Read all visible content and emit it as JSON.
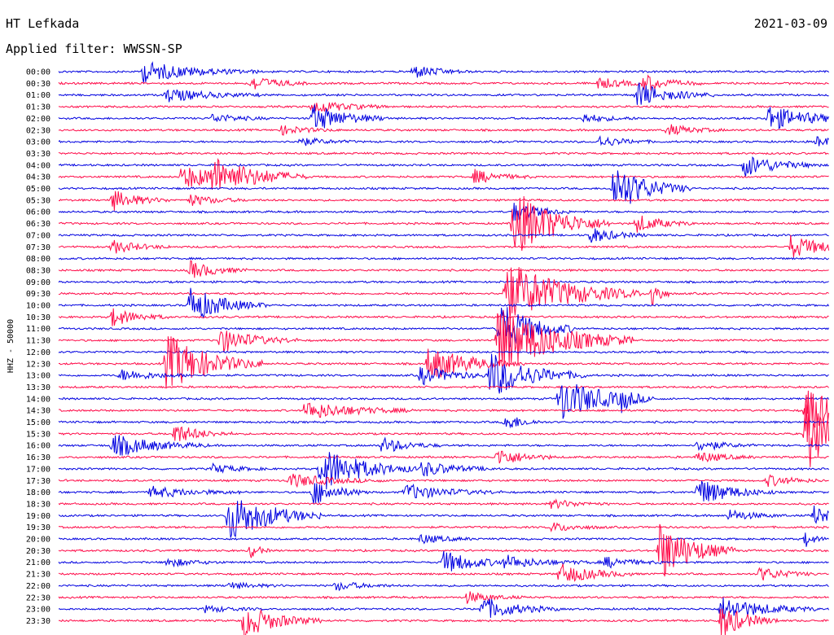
{
  "header": {
    "station": "HT Lefkada",
    "date": "2021-03-09",
    "filter": "Applied filter: WWSSN-SP"
  },
  "chart_data": {
    "type": "line",
    "title": "HT Lefkada",
    "subtitle": "Applied filter: WWSSN-SP",
    "ylabel": "HHZ - 50000",
    "row_labels": [
      "00:00",
      "00:30",
      "01:00",
      "01:30",
      "02:00",
      "02:30",
      "03:00",
      "03:30",
      "04:00",
      "04:30",
      "05:00",
      "05:30",
      "06:00",
      "06:30",
      "07:00",
      "07:30",
      "08:00",
      "08:30",
      "09:00",
      "09:30",
      "10:00",
      "10:30",
      "11:00",
      "11:30",
      "12:00",
      "12:30",
      "13:00",
      "13:30",
      "14:00",
      "14:30",
      "15:00",
      "15:30",
      "16:00",
      "16:30",
      "17:00",
      "17:30",
      "18:00",
      "18:30",
      "19:00",
      "19:30",
      "20:00",
      "20:30",
      "21:00",
      "21:30",
      "22:00",
      "22:30",
      "23:00",
      "23:30"
    ],
    "row_colors": [
      "#0000e0",
      "#ff0a48"
    ],
    "grid": false,
    "events": [
      {
        "row": 0,
        "x": 0.11,
        "amp": 0.9,
        "dur": 0.06
      },
      {
        "row": 0,
        "x": 0.46,
        "amp": 0.6,
        "dur": 0.03
      },
      {
        "row": 1,
        "x": 0.25,
        "amp": 0.7,
        "dur": 0.03
      },
      {
        "row": 1,
        "x": 0.7,
        "amp": 0.5,
        "dur": 0.03
      },
      {
        "row": 1,
        "x": 0.76,
        "amp": 0.7,
        "dur": 0.03
      },
      {
        "row": 2,
        "x": 0.14,
        "amp": 0.6,
        "dur": 0.05
      },
      {
        "row": 2,
        "x": 0.75,
        "amp": 1.1,
        "dur": 0.04
      },
      {
        "row": 3,
        "x": 0.33,
        "amp": 0.6,
        "dur": 0.04
      },
      {
        "row": 4,
        "x": 0.33,
        "amp": 1.2,
        "dur": 0.04
      },
      {
        "row": 4,
        "x": 0.2,
        "amp": 0.4,
        "dur": 0.03
      },
      {
        "row": 4,
        "x": 0.68,
        "amp": 0.4,
        "dur": 0.03
      },
      {
        "row": 4,
        "x": 0.92,
        "amp": 1.1,
        "dur": 0.05
      },
      {
        "row": 5,
        "x": 0.29,
        "amp": 0.4,
        "dur": 0.03
      },
      {
        "row": 5,
        "x": 0.79,
        "amp": 0.5,
        "dur": 0.03
      },
      {
        "row": 6,
        "x": 0.31,
        "amp": 0.4,
        "dur": 0.03
      },
      {
        "row": 6,
        "x": 0.7,
        "amp": 0.5,
        "dur": 0.03
      },
      {
        "row": 6,
        "x": 0.985,
        "amp": 0.5,
        "dur": 0.02
      },
      {
        "row": 8,
        "x": 0.89,
        "amp": 1.0,
        "dur": 0.04
      },
      {
        "row": 9,
        "x": 0.16,
        "amp": 1.0,
        "dur": 0.06
      },
      {
        "row": 9,
        "x": 0.2,
        "amp": 1.3,
        "dur": 0.05
      },
      {
        "row": 9,
        "x": 0.54,
        "amp": 0.6,
        "dur": 0.03
      },
      {
        "row": 10,
        "x": 0.72,
        "amp": 2.2,
        "dur": 0.04
      },
      {
        "row": 11,
        "x": 0.07,
        "amp": 0.9,
        "dur": 0.03
      },
      {
        "row": 11,
        "x": 0.17,
        "amp": 0.5,
        "dur": 0.03
      },
      {
        "row": 12,
        "x": 0.59,
        "amp": 0.9,
        "dur": 0.03
      },
      {
        "row": 13,
        "x": 0.59,
        "amp": 3.0,
        "dur": 0.05
      },
      {
        "row": 13,
        "x": 0.75,
        "amp": 0.8,
        "dur": 0.03
      },
      {
        "row": 14,
        "x": 0.69,
        "amp": 0.7,
        "dur": 0.03
      },
      {
        "row": 15,
        "x": 0.07,
        "amp": 0.6,
        "dur": 0.03
      },
      {
        "row": 15,
        "x": 0.95,
        "amp": 1.0,
        "dur": 0.04
      },
      {
        "row": 17,
        "x": 0.17,
        "amp": 0.8,
        "dur": 0.03
      },
      {
        "row": 19,
        "x": 0.58,
        "amp": 2.8,
        "dur": 0.07
      },
      {
        "row": 19,
        "x": 0.77,
        "amp": 1.5,
        "dur": 0.01
      },
      {
        "row": 20,
        "x": 0.17,
        "amp": 1.6,
        "dur": 0.04
      },
      {
        "row": 21,
        "x": 0.07,
        "amp": 0.8,
        "dur": 0.03
      },
      {
        "row": 22,
        "x": 0.57,
        "amp": 2.5,
        "dur": 0.04
      },
      {
        "row": 23,
        "x": 0.21,
        "amp": 1.1,
        "dur": 0.04
      },
      {
        "row": 23,
        "x": 0.57,
        "amp": 3.0,
        "dur": 0.07
      },
      {
        "row": 25,
        "x": 0.14,
        "amp": 2.6,
        "dur": 0.05
      },
      {
        "row": 25,
        "x": 0.48,
        "amp": 1.5,
        "dur": 0.05
      },
      {
        "row": 26,
        "x": 0.08,
        "amp": 0.5,
        "dur": 0.04
      },
      {
        "row": 26,
        "x": 0.47,
        "amp": 0.8,
        "dur": 0.04
      },
      {
        "row": 26,
        "x": 0.56,
        "amp": 2.0,
        "dur": 0.05
      },
      {
        "row": 28,
        "x": 0.65,
        "amp": 2.0,
        "dur": 0.05
      },
      {
        "row": 28,
        "x": 0.73,
        "amp": 0.9,
        "dur": 0.01
      },
      {
        "row": 29,
        "x": 0.32,
        "amp": 0.8,
        "dur": 0.06
      },
      {
        "row": 29,
        "x": 0.97,
        "amp": 2.5,
        "dur": 0.03
      },
      {
        "row": 30,
        "x": 0.58,
        "amp": 0.8,
        "dur": 0.02
      },
      {
        "row": 31,
        "x": 0.15,
        "amp": 0.9,
        "dur": 0.03
      },
      {
        "row": 31,
        "x": 0.97,
        "amp": 3.5,
        "dur": 0.03
      },
      {
        "row": 32,
        "x": 0.07,
        "amp": 1.0,
        "dur": 0.05
      },
      {
        "row": 32,
        "x": 0.42,
        "amp": 0.7,
        "dur": 0.03
      },
      {
        "row": 32,
        "x": 0.83,
        "amp": 0.5,
        "dur": 0.03
      },
      {
        "row": 33,
        "x": 0.57,
        "amp": 0.8,
        "dur": 0.03
      },
      {
        "row": 33,
        "x": 0.83,
        "amp": 0.5,
        "dur": 0.03
      },
      {
        "row": 34,
        "x": 0.34,
        "amp": 2.0,
        "dur": 0.05
      },
      {
        "row": 34,
        "x": 0.47,
        "amp": 0.7,
        "dur": 0.04
      },
      {
        "row": 34,
        "x": 0.2,
        "amp": 0.4,
        "dur": 0.03
      },
      {
        "row": 35,
        "x": 0.3,
        "amp": 0.6,
        "dur": 0.05
      },
      {
        "row": 35,
        "x": 0.92,
        "amp": 0.5,
        "dur": 0.03
      },
      {
        "row": 36,
        "x": 0.12,
        "amp": 0.5,
        "dur": 0.05
      },
      {
        "row": 36,
        "x": 0.33,
        "amp": 1.1,
        "dur": 0.03
      },
      {
        "row": 36,
        "x": 0.45,
        "amp": 0.7,
        "dur": 0.05
      },
      {
        "row": 36,
        "x": 0.83,
        "amp": 1.2,
        "dur": 0.04
      },
      {
        "row": 37,
        "x": 0.64,
        "amp": 0.4,
        "dur": 0.03
      },
      {
        "row": 38,
        "x": 0.22,
        "amp": 2.2,
        "dur": 0.05
      },
      {
        "row": 38,
        "x": 0.87,
        "amp": 0.5,
        "dur": 0.03
      },
      {
        "row": 38,
        "x": 0.98,
        "amp": 0.9,
        "dur": 0.02
      },
      {
        "row": 39,
        "x": 0.64,
        "amp": 0.4,
        "dur": 0.03
      },
      {
        "row": 40,
        "x": 0.47,
        "amp": 0.4,
        "dur": 0.03
      },
      {
        "row": 40,
        "x": 0.97,
        "amp": 0.7,
        "dur": 0.01
      },
      {
        "row": 41,
        "x": 0.78,
        "amp": 2.6,
        "dur": 0.04
      },
      {
        "row": 41,
        "x": 0.25,
        "amp": 0.7,
        "dur": 0.01
      },
      {
        "row": 42,
        "x": 0.14,
        "amp": 0.4,
        "dur": 0.03
      },
      {
        "row": 42,
        "x": 0.5,
        "amp": 1.0,
        "dur": 0.04
      },
      {
        "row": 42,
        "x": 0.58,
        "amp": 0.5,
        "dur": 0.05
      },
      {
        "row": 42,
        "x": 0.71,
        "amp": 0.5,
        "dur": 0.03
      },
      {
        "row": 43,
        "x": 0.65,
        "amp": 0.9,
        "dur": 0.04
      },
      {
        "row": 43,
        "x": 0.91,
        "amp": 0.6,
        "dur": 0.03
      },
      {
        "row": 44,
        "x": 0.36,
        "amp": 0.4,
        "dur": 0.03
      },
      {
        "row": 44,
        "x": 0.22,
        "amp": 0.3,
        "dur": 0.03
      },
      {
        "row": 45,
        "x": 0.53,
        "amp": 0.5,
        "dur": 0.03
      },
      {
        "row": 46,
        "x": 0.55,
        "amp": 1.0,
        "dur": 0.04
      },
      {
        "row": 46,
        "x": 0.86,
        "amp": 1.1,
        "dur": 0.05
      },
      {
        "row": 46,
        "x": 0.19,
        "amp": 0.3,
        "dur": 0.03
      },
      {
        "row": 47,
        "x": 0.24,
        "amp": 1.5,
        "dur": 0.04
      },
      {
        "row": 47,
        "x": 0.86,
        "amp": 1.5,
        "dur": 0.03
      }
    ]
  }
}
